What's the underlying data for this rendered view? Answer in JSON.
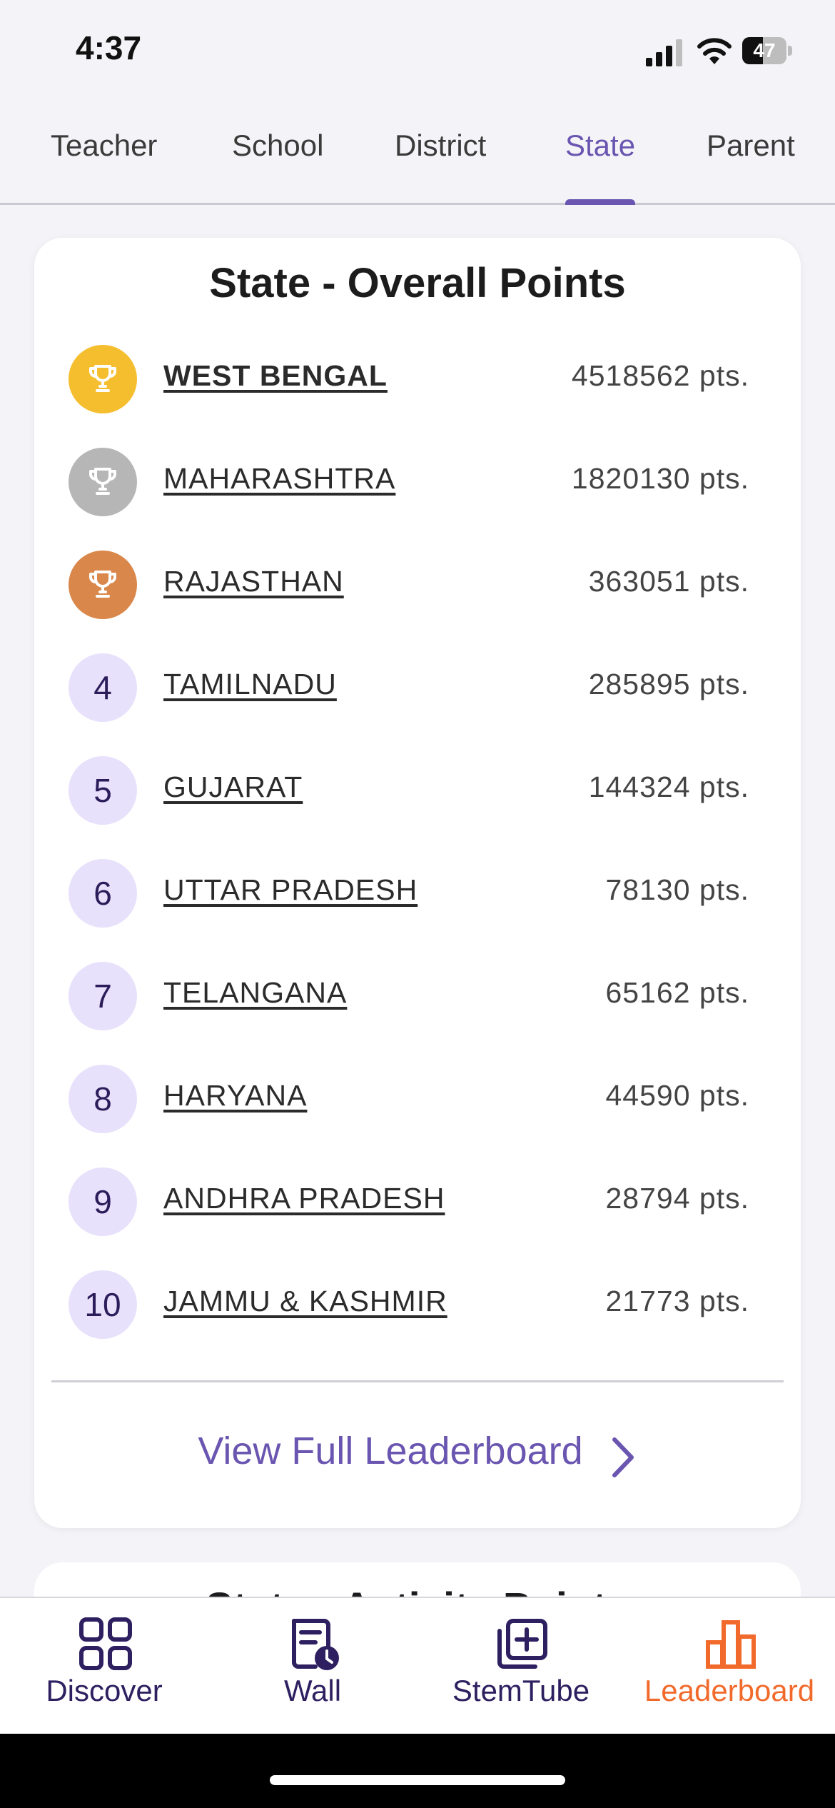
{
  "status_bar": {
    "time": "4:37",
    "battery_pct": "47",
    "battery_level": 0.47
  },
  "tabs": [
    {
      "label": "Teacher",
      "active": false
    },
    {
      "label": "School",
      "active": false
    },
    {
      "label": "District",
      "active": false
    },
    {
      "label": "State",
      "active": true
    },
    {
      "label": "Parent",
      "active": false
    }
  ],
  "leaderboard": {
    "title": "State - Overall Points",
    "rows": [
      {
        "rank": "1",
        "name": "WEST BENGAL",
        "points": "4518562 pts.",
        "medal": "gold"
      },
      {
        "rank": "2",
        "name": "MAHARASHTRA",
        "points": "1820130 pts.",
        "medal": "silver"
      },
      {
        "rank": "3",
        "name": "RAJASTHAN",
        "points": "363051 pts.",
        "medal": "bronze"
      },
      {
        "rank": "4",
        "name": "TAMILNADU",
        "points": "285895 pts."
      },
      {
        "rank": "5",
        "name": "GUJARAT",
        "points": "144324 pts."
      },
      {
        "rank": "6",
        "name": "UTTAR PRADESH",
        "points": "78130 pts."
      },
      {
        "rank": "7",
        "name": "TELANGANA",
        "points": "65162 pts."
      },
      {
        "rank": "8",
        "name": "HARYANA",
        "points": "44590 pts."
      },
      {
        "rank": "9",
        "name": "ANDHRA PRADESH",
        "points": "28794 pts."
      },
      {
        "rank": "10",
        "name": "JAMMU & KASHMIR",
        "points": "21773 pts."
      }
    ],
    "view_full_label": "View Full Leaderboard"
  },
  "next_card": {
    "title": "State - Activity Points"
  },
  "bottom_nav": [
    {
      "label": "Discover",
      "icon": "grid-icon",
      "active": false
    },
    {
      "label": "Wall",
      "icon": "wall-clock-doc-icon",
      "active": false
    },
    {
      "label": "StemTube",
      "icon": "add-video-icon",
      "active": false
    },
    {
      "label": "Leaderboard",
      "icon": "bar-chart-icon",
      "active": true
    }
  ],
  "colors": {
    "accent": "#6a56b0",
    "active_nav": "#f26a2b",
    "nav_icon": "#2e2060",
    "gold": "#f5be2e",
    "silver": "#b6b6b6",
    "bronze": "#d9874a",
    "rank_bg": "#e8e1fb"
  }
}
